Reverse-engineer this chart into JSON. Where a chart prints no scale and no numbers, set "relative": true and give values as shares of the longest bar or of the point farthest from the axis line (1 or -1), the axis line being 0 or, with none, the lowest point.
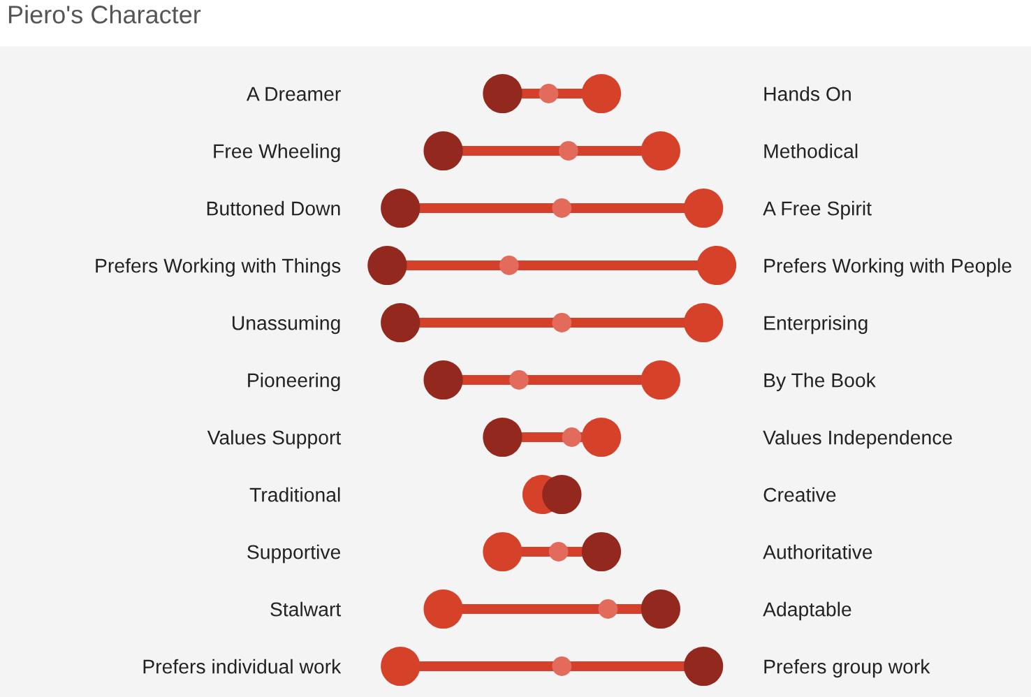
{
  "chart_data": {
    "type": "scatter",
    "title": "Piero's Character",
    "orientation": "horizontal",
    "relative": true,
    "marker": "circle",
    "categories": [
      "A Dreamer",
      "Free Wheeling",
      "Buttoned Down",
      "Prefers Working with Things",
      "Unassuming",
      "Pioneering",
      "Values Support",
      "Traditional",
      "Supportive",
      "Stalwart",
      "Prefers individual work"
    ],
    "y2_categories": [
      "Hands On",
      "Methodical",
      "A Free Spirit",
      "Prefers Working with People",
      "Enterprising",
      "By The Book",
      "Values Independence",
      "Creative",
      "Authoritative",
      "Adaptable",
      "Prefers group work"
    ],
    "series": [
      {
        "color": "#e26b5c",
        "values": [
          0.49,
          0.55,
          0.53,
          0.37,
          0.53,
          0.4,
          0.56,
          null,
          0.52,
          0.67,
          0.53
        ]
      },
      {
        "color": "#d64129",
        "values": [
          0.65,
          0.83,
          0.96,
          1,
          0.96,
          0.83,
          0.65,
          0.47,
          0.35,
          0.17,
          0.04
        ]
      },
      {
        "color": "#93281e",
        "values": [
          0.35,
          0.17,
          0.04,
          0,
          0.04,
          0.17,
          0.35,
          0.53,
          0.65,
          0.83,
          0.96
        ]
      }
    ]
  }
}
